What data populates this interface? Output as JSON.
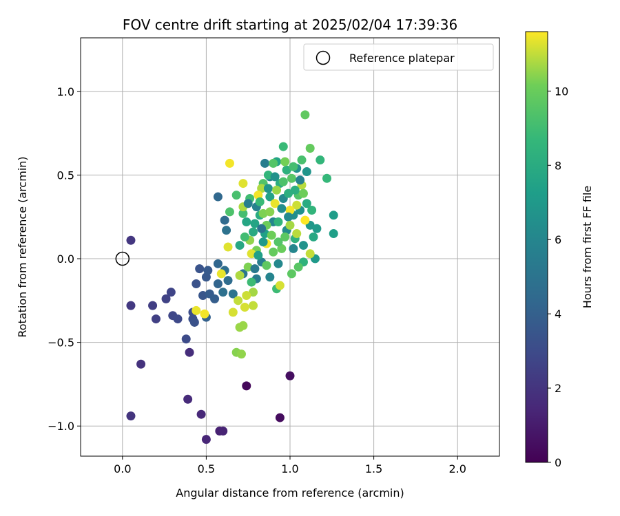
{
  "chart_data": {
    "type": "scatter",
    "title": "FOV centre drift starting at 2025/02/04 17:39:36",
    "xlabel": "Angular distance from reference (arcmin)",
    "ylabel": "Rotation from reference (arcmin)",
    "xlim": [
      -0.25,
      2.25
    ],
    "ylim": [
      -1.18,
      1.32
    ],
    "xticks": [
      0.0,
      0.5,
      1.0,
      1.5,
      2.0
    ],
    "xtick_labels": [
      "0.0",
      "0.5",
      "1.0",
      "1.5",
      "2.0"
    ],
    "yticks": [
      -1.0,
      -0.5,
      0.0,
      0.5,
      1.0
    ],
    "ytick_labels": [
      "−1.0",
      "−0.5",
      "0.0",
      "0.5",
      "1.0"
    ],
    "grid": true,
    "legend": {
      "position": "top-right",
      "entries": [
        "Reference platepar"
      ]
    },
    "reference_point": {
      "x": 0.0,
      "y": 0.0
    },
    "colorbar": {
      "label": "Hours from first FF file",
      "colormap": "viridis",
      "range": [
        0,
        11.6
      ],
      "ticks": [
        0,
        2,
        4,
        6,
        8,
        10
      ],
      "tick_labels": [
        "0",
        "2",
        "4",
        "6",
        "8",
        "10"
      ]
    },
    "points": [
      {
        "x": 0.74,
        "y": -0.76,
        "t": 0.3
      },
      {
        "x": 0.94,
        "y": -0.95,
        "t": 0.4
      },
      {
        "x": 1.0,
        "y": -0.7,
        "t": 0.5
      },
      {
        "x": 0.58,
        "y": -1.03,
        "t": 1.2
      },
      {
        "x": 0.6,
        "y": -1.03,
        "t": 1.3
      },
      {
        "x": 0.5,
        "y": -1.08,
        "t": 1.4
      },
      {
        "x": 0.47,
        "y": -0.93,
        "t": 1.5
      },
      {
        "x": 0.39,
        "y": -0.84,
        "t": 1.6
      },
      {
        "x": 0.4,
        "y": -0.56,
        "t": 1.7
      },
      {
        "x": 0.11,
        "y": -0.63,
        "t": 1.9
      },
      {
        "x": 0.05,
        "y": -0.94,
        "t": 2.0
      },
      {
        "x": 0.05,
        "y": 0.11,
        "t": 2.1
      },
      {
        "x": 0.05,
        "y": -0.28,
        "t": 2.2
      },
      {
        "x": 0.18,
        "y": -0.28,
        "t": 2.4
      },
      {
        "x": 0.2,
        "y": -0.36,
        "t": 2.5
      },
      {
        "x": 0.26,
        "y": -0.24,
        "t": 2.6
      },
      {
        "x": 0.29,
        "y": -0.2,
        "t": 2.7
      },
      {
        "x": 0.3,
        "y": -0.34,
        "t": 2.8
      },
      {
        "x": 0.33,
        "y": -0.36,
        "t": 2.9
      },
      {
        "x": 0.38,
        "y": -0.48,
        "t": 3.0
      },
      {
        "x": 0.42,
        "y": -0.32,
        "t": 3.1
      },
      {
        "x": 0.42,
        "y": -0.36,
        "t": 3.2
      },
      {
        "x": 0.43,
        "y": -0.38,
        "t": 3.3
      },
      {
        "x": 0.44,
        "y": -0.15,
        "t": 3.3
      },
      {
        "x": 0.46,
        "y": -0.06,
        "t": 3.4
      },
      {
        "x": 0.48,
        "y": -0.22,
        "t": 3.5
      },
      {
        "x": 0.5,
        "y": -0.11,
        "t": 3.6
      },
      {
        "x": 0.51,
        "y": -0.07,
        "t": 3.7
      },
      {
        "x": 0.52,
        "y": -0.21,
        "t": 3.8
      },
      {
        "x": 0.55,
        "y": -0.24,
        "t": 3.9
      },
      {
        "x": 0.5,
        "y": -0.35,
        "t": 4.0
      },
      {
        "x": 0.57,
        "y": -0.15,
        "t": 4.2
      },
      {
        "x": 0.57,
        "y": -0.03,
        "t": 4.3
      },
      {
        "x": 0.57,
        "y": 0.37,
        "t": 4.4
      },
      {
        "x": 0.61,
        "y": 0.23,
        "t": 4.5
      },
      {
        "x": 0.63,
        "y": -0.13,
        "t": 4.6
      },
      {
        "x": 0.61,
        "y": -0.07,
        "t": 4.7
      },
      {
        "x": 0.6,
        "y": -0.2,
        "t": 4.8
      },
      {
        "x": 0.62,
        "y": 0.17,
        "t": 4.9
      },
      {
        "x": 0.66,
        "y": -0.21,
        "t": 5.0
      },
      {
        "x": 0.72,
        "y": -0.09,
        "t": 5.2
      },
      {
        "x": 0.8,
        "y": -0.12,
        "t": 5.4
      },
      {
        "x": 0.85,
        "y": 0.57,
        "t": 5.5
      },
      {
        "x": 0.83,
        "y": -0.02,
        "t": 5.6
      },
      {
        "x": 0.8,
        "y": 0.31,
        "t": 5.7
      },
      {
        "x": 0.88,
        "y": 0.49,
        "t": 5.8
      },
      {
        "x": 0.88,
        "y": -0.11,
        "t": 5.9
      },
      {
        "x": 0.9,
        "y": 0.22,
        "t": 6.0
      },
      {
        "x": 0.93,
        "y": -0.03,
        "t": 6.1
      },
      {
        "x": 0.96,
        "y": 0.36,
        "t": 6.2
      },
      {
        "x": 0.98,
        "y": 0.17,
        "t": 6.3
      },
      {
        "x": 1.02,
        "y": 0.26,
        "t": 6.4
      },
      {
        "x": 1.04,
        "y": 0.54,
        "t": 6.5
      },
      {
        "x": 1.06,
        "y": 0.29,
        "t": 6.6
      },
      {
        "x": 1.08,
        "y": 0.08,
        "t": 6.7
      },
      {
        "x": 1.1,
        "y": 0.52,
        "t": 6.8
      },
      {
        "x": 1.12,
        "y": 0.2,
        "t": 6.9
      },
      {
        "x": 1.15,
        "y": 0.0,
        "t": 7.0
      },
      {
        "x": 1.16,
        "y": 0.18,
        "t": 7.1
      },
      {
        "x": 1.26,
        "y": 0.26,
        "t": 7.2
      },
      {
        "x": 1.26,
        "y": 0.15,
        "t": 7.3
      },
      {
        "x": 0.85,
        "y": 0.15,
        "t": 7.4
      },
      {
        "x": 0.88,
        "y": 0.37,
        "t": 7.5
      },
      {
        "x": 0.92,
        "y": 0.58,
        "t": 7.6
      },
      {
        "x": 0.74,
        "y": 0.22,
        "t": 7.7
      },
      {
        "x": 0.7,
        "y": 0.08,
        "t": 7.8
      },
      {
        "x": 0.78,
        "y": 0.16,
        "t": 7.9
      },
      {
        "x": 0.82,
        "y": 0.26,
        "t": 8.0
      },
      {
        "x": 0.94,
        "y": 0.45,
        "t": 8.1
      },
      {
        "x": 0.99,
        "y": 0.39,
        "t": 8.2
      },
      {
        "x": 1.03,
        "y": 0.12,
        "t": 8.3
      },
      {
        "x": 1.08,
        "y": -0.02,
        "t": 8.4
      },
      {
        "x": 1.13,
        "y": 0.29,
        "t": 8.5
      },
      {
        "x": 1.18,
        "y": 0.59,
        "t": 8.6
      },
      {
        "x": 1.22,
        "y": 0.48,
        "t": 8.7
      },
      {
        "x": 0.96,
        "y": 0.67,
        "t": 8.8
      },
      {
        "x": 0.92,
        "y": -0.18,
        "t": 8.9
      },
      {
        "x": 0.76,
        "y": 0.36,
        "t": 9.0
      },
      {
        "x": 0.72,
        "y": 0.27,
        "t": 9.1
      },
      {
        "x": 0.68,
        "y": 0.38,
        "t": 9.2
      },
      {
        "x": 0.64,
        "y": 0.28,
        "t": 9.3
      },
      {
        "x": 0.84,
        "y": 0.45,
        "t": 9.4
      },
      {
        "x": 0.9,
        "y": 0.57,
        "t": 9.5
      },
      {
        "x": 1.05,
        "y": -0.05,
        "t": 9.6
      },
      {
        "x": 1.01,
        "y": -0.09,
        "t": 9.7
      },
      {
        "x": 1.09,
        "y": 0.86,
        "t": 9.8
      },
      {
        "x": 1.12,
        "y": 0.66,
        "t": 9.9
      },
      {
        "x": 0.95,
        "y": 0.06,
        "t": 10.0
      },
      {
        "x": 0.89,
        "y": 0.14,
        "t": 10.1
      },
      {
        "x": 0.8,
        "y": 0.05,
        "t": 10.2
      },
      {
        "x": 0.75,
        "y": -0.05,
        "t": 10.3
      },
      {
        "x": 0.68,
        "y": -0.56,
        "t": 10.4
      },
      {
        "x": 0.71,
        "y": -0.57,
        "t": 10.5
      },
      {
        "x": 0.72,
        "y": -0.4,
        "t": 10.6
      },
      {
        "x": 0.7,
        "y": -0.41,
        "t": 10.6
      },
      {
        "x": 0.78,
        "y": -0.2,
        "t": 10.7
      },
      {
        "x": 0.83,
        "y": 0.42,
        "t": 10.8
      },
      {
        "x": 1.07,
        "y": 0.44,
        "t": 10.9
      },
      {
        "x": 1.12,
        "y": 0.03,
        "t": 11.0
      },
      {
        "x": 1.04,
        "y": 0.32,
        "t": 11.1
      },
      {
        "x": 0.94,
        "y": -0.16,
        "t": 11.2
      },
      {
        "x": 0.72,
        "y": 0.45,
        "t": 11.3
      },
      {
        "x": 0.63,
        "y": 0.07,
        "t": 11.3
      },
      {
        "x": 0.59,
        "y": -0.09,
        "t": 11.4
      },
      {
        "x": 0.64,
        "y": 0.57,
        "t": 11.5
      },
      {
        "x": 0.49,
        "y": -0.33,
        "t": 11.5
      },
      {
        "x": 0.44,
        "y": -0.31,
        "t": 11.4
      },
      {
        "x": 0.66,
        "y": -0.32,
        "t": 11.2
      },
      {
        "x": 0.78,
        "y": -0.28,
        "t": 11.0
      },
      {
        "x": 0.86,
        "y": 0.09,
        "t": 11.5
      },
      {
        "x": 0.91,
        "y": 0.33,
        "t": 11.4
      },
      {
        "x": 1.0,
        "y": 0.29,
        "t": 11.5
      },
      {
        "x": 1.09,
        "y": 0.23,
        "t": 11.6
      },
      {
        "x": 0.81,
        "y": 0.38,
        "t": 11.5
      },
      {
        "x": 0.77,
        "y": 0.03,
        "t": 11.3
      },
      {
        "x": 0.73,
        "y": -0.29,
        "t": 11.2
      },
      {
        "x": 0.69,
        "y": -0.25,
        "t": 11.0
      },
      {
        "x": 0.72,
        "y": 0.31,
        "t": 10.8
      },
      {
        "x": 0.76,
        "y": 0.11,
        "t": 10.5
      },
      {
        "x": 0.84,
        "y": 0.27,
        "t": 10.3
      },
      {
        "x": 0.86,
        "y": 0.2,
        "t": 10.1
      },
      {
        "x": 0.9,
        "y": 0.04,
        "t": 9.9
      },
      {
        "x": 0.97,
        "y": 0.13,
        "t": 9.7
      },
      {
        "x": 1.01,
        "y": 0.48,
        "t": 9.6
      },
      {
        "x": 1.05,
        "y": 0.38,
        "t": 9.4
      },
      {
        "x": 1.07,
        "y": 0.59,
        "t": 9.2
      },
      {
        "x": 0.73,
        "y": 0.13,
        "t": 9.0
      },
      {
        "x": 0.77,
        "y": -0.14,
        "t": 8.9
      },
      {
        "x": 0.82,
        "y": 0.34,
        "t": 8.8
      },
      {
        "x": 0.87,
        "y": 0.5,
        "t": 8.6
      },
      {
        "x": 0.93,
        "y": 0.22,
        "t": 8.5
      },
      {
        "x": 0.98,
        "y": 0.53,
        "t": 8.3
      },
      {
        "x": 1.03,
        "y": 0.41,
        "t": 8.2
      },
      {
        "x": 1.1,
        "y": 0.33,
        "t": 8.0
      },
      {
        "x": 1.14,
        "y": 0.13,
        "t": 7.8
      },
      {
        "x": 0.79,
        "y": 0.21,
        "t": 7.6
      },
      {
        "x": 0.81,
        "y": 0.02,
        "t": 7.3
      },
      {
        "x": 0.84,
        "y": 0.1,
        "t": 7.0
      },
      {
        "x": 0.87,
        "y": 0.42,
        "t": 6.8
      },
      {
        "x": 0.91,
        "y": 0.49,
        "t": 6.6
      },
      {
        "x": 0.95,
        "y": 0.3,
        "t": 6.4
      },
      {
        "x": 0.99,
        "y": 0.25,
        "t": 6.2
      },
      {
        "x": 1.02,
        "y": 0.06,
        "t": 6.0
      },
      {
        "x": 1.06,
        "y": 0.47,
        "t": 5.8
      },
      {
        "x": 0.75,
        "y": 0.33,
        "t": 5.6
      },
      {
        "x": 0.79,
        "y": -0.06,
        "t": 5.3
      },
      {
        "x": 0.83,
        "y": 0.18,
        "t": 5.1
      },
      {
        "x": 0.88,
        "y": 0.28,
        "t": 10.4
      },
      {
        "x": 0.92,
        "y": 0.41,
        "t": 10.6
      },
      {
        "x": 0.97,
        "y": 0.58,
        "t": 10.2
      },
      {
        "x": 1.0,
        "y": 0.2,
        "t": 10.7
      },
      {
        "x": 1.04,
        "y": 0.15,
        "t": 10.9
      },
      {
        "x": 1.08,
        "y": 0.39,
        "t": 10.1
      },
      {
        "x": 0.7,
        "y": -0.1,
        "t": 10.8
      },
      {
        "x": 0.74,
        "y": -0.22,
        "t": 11.1
      },
      {
        "x": 0.86,
        "y": -0.04,
        "t": 9.8
      },
      {
        "x": 0.93,
        "y": 0.1,
        "t": 9.5
      },
      {
        "x": 0.96,
        "y": 0.46,
        "t": 9.3
      },
      {
        "x": 1.02,
        "y": 0.55,
        "t": 9.1
      }
    ]
  }
}
